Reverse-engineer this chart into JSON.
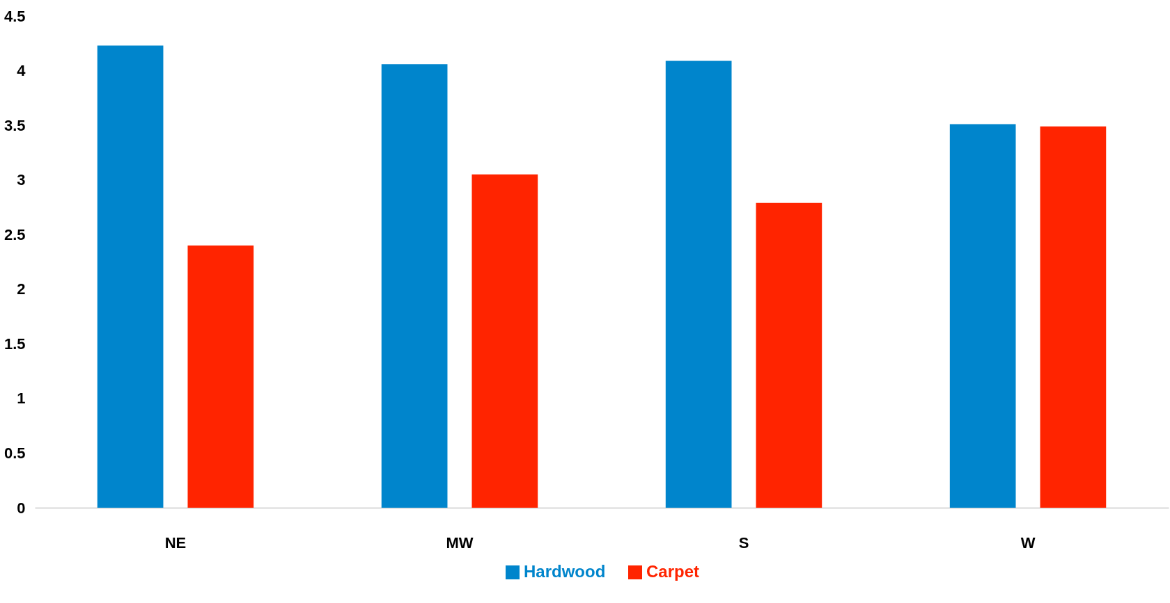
{
  "chart_data": {
    "type": "bar",
    "categories": [
      "NE",
      "MW",
      "S",
      "W"
    ],
    "series": [
      {
        "name": "Hardwood",
        "color": "#0085cc",
        "values": [
          4.23,
          4.06,
          4.09,
          3.51
        ]
      },
      {
        "name": "Carpet",
        "color": "#ff2400",
        "values": [
          2.4,
          3.05,
          2.79,
          3.49
        ]
      }
    ],
    "ylim": [
      0,
      4.5
    ],
    "yticks": [
      0,
      0.5,
      1,
      1.5,
      2,
      2.5,
      3,
      3.5,
      4,
      4.5
    ],
    "grid": false,
    "legend": "bottom"
  }
}
